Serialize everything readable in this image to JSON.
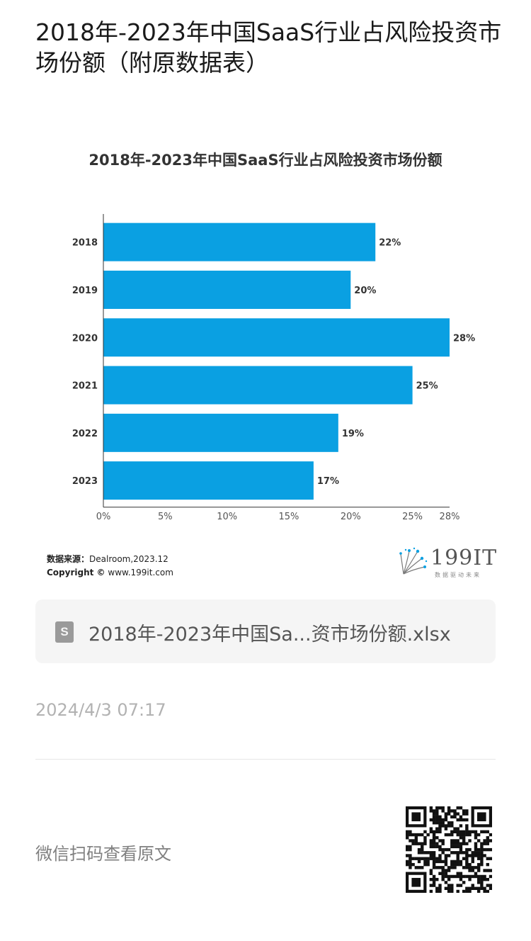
{
  "page": {
    "title": "2018年-2023年中国SaaS行业占风险投资市场份额（附原数据表）"
  },
  "chart_card": {
    "source_label": "数据来源：",
    "source_value": "Dealroom,2023.12",
    "copyright_label": "Copyright ©",
    "copyright_value": "www.199it.com",
    "logo_text": "199IT",
    "logo_sub": "数据驱动未来"
  },
  "chart_data": {
    "type": "bar",
    "orientation": "horizontal",
    "title": "2018年-2023年中国SaaS行业占风险投资市场份额",
    "categories": [
      "2018",
      "2019",
      "2020",
      "2021",
      "2022",
      "2023"
    ],
    "values": [
      22,
      20,
      28,
      25,
      19,
      17
    ],
    "data_labels": [
      "22%",
      "20%",
      "28%",
      "25%",
      "19%",
      "17%"
    ],
    "x_ticks": [
      0,
      5,
      10,
      15,
      20,
      25,
      28
    ],
    "x_tick_labels": [
      "0%",
      "5%",
      "10%",
      "15%",
      "20%",
      "25%",
      "28%"
    ],
    "xlim": [
      0,
      28
    ],
    "xlabel": "",
    "ylabel": "",
    "bar_color": "#0aa0e2",
    "grid": false,
    "legend": "none"
  },
  "attachment": {
    "file_icon_letter": "S",
    "file_name": "2018年-2023年中国Sa...资市场份额.xlsx"
  },
  "meta": {
    "timestamp": "2024/4/3 07:17",
    "qr_hint": "微信扫码查看原文"
  },
  "colors": {
    "accent": "#0aa0e2",
    "text": "#1a1a1a",
    "muted": "#b2b2b2"
  }
}
